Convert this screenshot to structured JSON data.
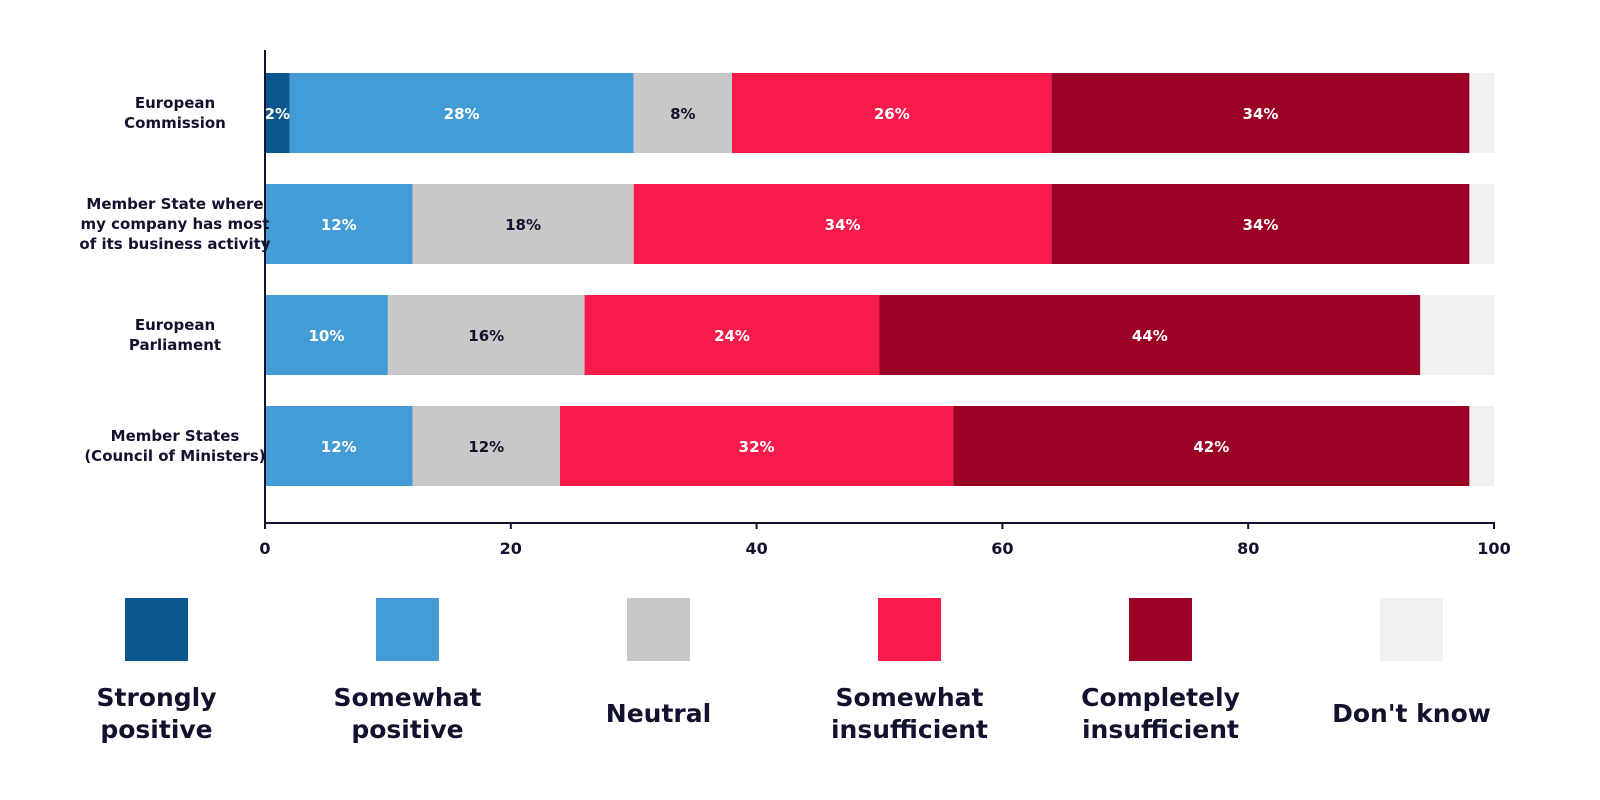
{
  "chart_data": {
    "type": "bar",
    "orientation": "horizontal",
    "stacked": true,
    "title": "",
    "xlabel": "",
    "ylabel": "",
    "xlim": [
      0,
      100
    ],
    "xticks": [
      "0",
      "20",
      "40",
      "60",
      "80",
      "100"
    ],
    "grid": false,
    "legend_position": "bottom",
    "categories": [
      [
        "European",
        "Commission"
      ],
      [
        "Member State where",
        "my company has most",
        "of its business activity"
      ],
      [
        "European",
        "Parliament"
      ],
      [
        "Member States",
        "(Council of Ministers)"
      ]
    ],
    "series": [
      {
        "name": [
          "Strongly",
          "positive"
        ],
        "color": "#0b568c",
        "text_color": "#ffffff",
        "values": [
          2,
          0,
          0,
          0
        ],
        "labels": [
          "2%",
          "",
          "",
          ""
        ]
      },
      {
        "name": [
          "Somewhat",
          "positive"
        ],
        "color": "#449cd6",
        "text_color": "#ffffff",
        "values": [
          28,
          12,
          10,
          12
        ],
        "labels": [
          "28%",
          "12%",
          "10%",
          "12%"
        ]
      },
      {
        "name": [
          "Neutral"
        ],
        "color": "#c8c8c8",
        "text_color": "#12122e",
        "values": [
          8,
          18,
          16,
          12
        ],
        "labels": [
          "8%",
          "18%",
          "16%",
          "12%"
        ]
      },
      {
        "name": [
          "Somewhat",
          "insufficient"
        ],
        "color": "#f71b4c",
        "text_color": "#ffffff",
        "values": [
          26,
          34,
          24,
          32
        ],
        "labels": [
          "26%",
          "34%",
          "24%",
          "32%"
        ]
      },
      {
        "name": [
          "Completely",
          "insufficient"
        ],
        "color": "#9b0125",
        "text_color": "#ffffff",
        "values": [
          34,
          34,
          44,
          42
        ],
        "labels": [
          "34%",
          "34%",
          "44%",
          "42%"
        ]
      },
      {
        "name": [
          "Don't know"
        ],
        "color": "#f1f1f1",
        "text_color": "#12122e",
        "values": [
          2,
          2,
          6,
          2
        ],
        "labels": [
          "",
          "",
          "",
          ""
        ]
      }
    ]
  }
}
